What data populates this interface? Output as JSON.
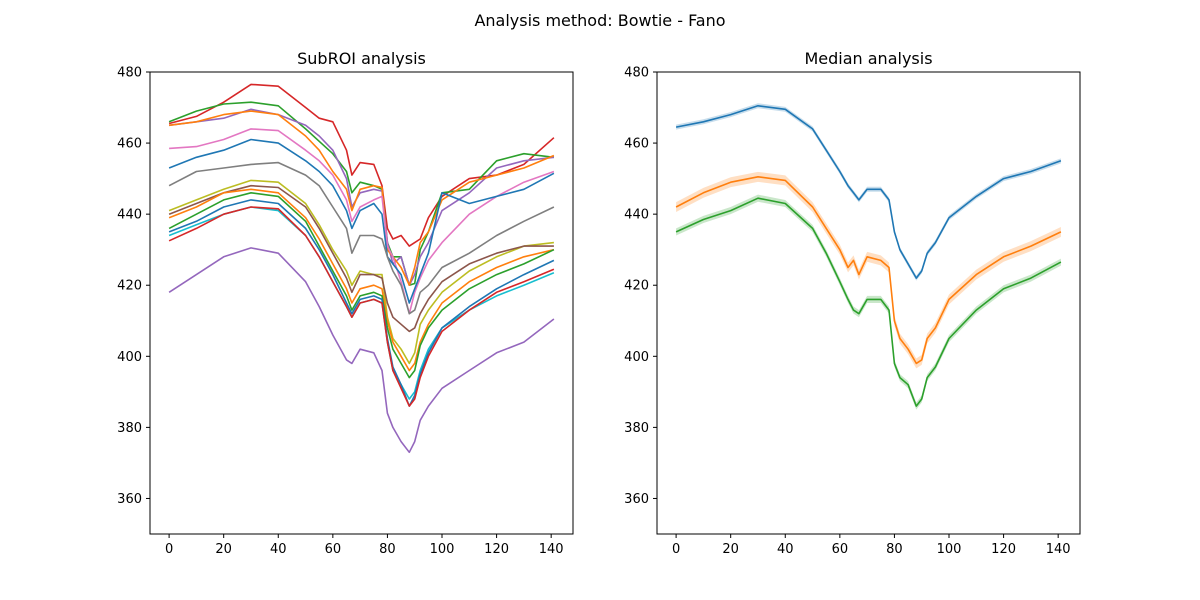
{
  "figure": {
    "suptitle": "Analysis method: Bowtie - Fano"
  },
  "chart_data": [
    {
      "type": "line",
      "title": "SubROI analysis",
      "xlabel": "",
      "ylabel": "",
      "xlim": [
        -7,
        148
      ],
      "ylim": [
        350,
        480
      ],
      "xticks": [
        0,
        20,
        40,
        60,
        80,
        100,
        120,
        140
      ],
      "yticks": [
        360,
        380,
        400,
        420,
        440,
        460,
        480
      ],
      "grid": false,
      "legend": "none",
      "x": [
        0,
        10,
        20,
        30,
        40,
        50,
        55,
        60,
        65,
        67,
        70,
        75,
        78,
        80,
        82,
        85,
        88,
        90,
        92,
        95,
        100,
        110,
        120,
        130,
        141
      ],
      "series": [
        {
          "color": "#d62728",
          "values": [
            465.5,
            467.5,
            471.5,
            476.5,
            476,
            470,
            467,
            466,
            458,
            451,
            454.5,
            454,
            448,
            436,
            433,
            434,
            431,
            432,
            433,
            439,
            445,
            450,
            451,
            454,
            461.5
          ]
        },
        {
          "color": "#2ca02c",
          "values": [
            466,
            469,
            471,
            471.5,
            470.5,
            464,
            460.5,
            457,
            452,
            446,
            449,
            448,
            447,
            432,
            428,
            428,
            420,
            420.5,
            430,
            435,
            446,
            447,
            455,
            457,
            456
          ]
        },
        {
          "color": "#9467bd",
          "values": [
            465,
            466,
            467,
            469.5,
            468,
            465,
            462,
            458,
            450,
            442,
            446,
            447,
            446.5,
            432,
            426,
            428,
            420,
            423,
            428,
            432,
            441,
            446,
            453,
            455,
            456
          ]
        },
        {
          "color": "#ff7f0e",
          "values": [
            465,
            466,
            468,
            469,
            468,
            462,
            458,
            452,
            447,
            441,
            447,
            448,
            447.5,
            430,
            428,
            425,
            420,
            425,
            432,
            435,
            444,
            449,
            451,
            453,
            456.5
          ]
        },
        {
          "color": "#e377c2",
          "values": [
            458.5,
            459,
            461,
            464,
            463.5,
            458,
            455,
            451,
            444,
            438,
            442,
            444,
            445,
            431,
            428,
            421,
            412,
            418,
            422,
            427,
            432,
            440,
            445,
            449,
            452
          ]
        },
        {
          "color": "#1f77b4",
          "values": [
            453,
            456,
            458,
            461,
            460,
            455,
            452,
            448,
            441,
            436,
            441,
            443,
            440,
            428,
            426,
            423,
            415,
            419,
            423,
            429,
            446,
            443,
            445,
            447,
            451.5
          ]
        },
        {
          "color": "#7f7f7f",
          "values": [
            448,
            452,
            453,
            454,
            454.5,
            451,
            448,
            442,
            436,
            429,
            434,
            434,
            433,
            428,
            424,
            420,
            412,
            413,
            418,
            420,
            425,
            429,
            434,
            438,
            442
          ]
        },
        {
          "color": "#bcbd22",
          "values": [
            441,
            444,
            447,
            449.5,
            449,
            443,
            437,
            430,
            424,
            420,
            424,
            423,
            423,
            411,
            405,
            402,
            398,
            401,
            409,
            413,
            418,
            424,
            428,
            431,
            432
          ]
        },
        {
          "color": "#8c564b",
          "values": [
            440,
            443,
            446,
            448,
            447.5,
            442,
            436,
            429,
            422,
            418,
            423,
            423,
            422,
            415,
            411,
            409,
            407,
            408,
            412,
            416,
            421,
            426,
            429,
            431,
            431
          ]
        },
        {
          "color": "#ff7f0e",
          "values": [
            439,
            442,
            446,
            447,
            446,
            439,
            433,
            426,
            419,
            415,
            419,
            420,
            419,
            410,
            404,
            400,
            396,
            398,
            404,
            409,
            415,
            421,
            425,
            428,
            430
          ]
        },
        {
          "color": "#2ca02c",
          "values": [
            436,
            440,
            444,
            446,
            445,
            438,
            431,
            424,
            417,
            413,
            417,
            418,
            417,
            408,
            402,
            398,
            394,
            396,
            403,
            408,
            413,
            419,
            423,
            426,
            430
          ]
        },
        {
          "color": "#17becf",
          "values": [
            434,
            437,
            440,
            442,
            441,
            434,
            428,
            421,
            414,
            411,
            415,
            416,
            415,
            404,
            396,
            392,
            388,
            390,
            396,
            402,
            408,
            413,
            417,
            420,
            423.5
          ]
        },
        {
          "color": "#1f77b4",
          "values": [
            435,
            438,
            442,
            444,
            443,
            436,
            430,
            423,
            415,
            412,
            416,
            417,
            416,
            405,
            397,
            392,
            386,
            389,
            395,
            401,
            408,
            414,
            419,
            423,
            427
          ]
        },
        {
          "color": "#d62728",
          "values": [
            432.5,
            436,
            440,
            442,
            441.5,
            434,
            428,
            421,
            414,
            411,
            415,
            416,
            415,
            404,
            396,
            391,
            386,
            388,
            394,
            400,
            407,
            413,
            418,
            421,
            424.5
          ]
        },
        {
          "color": "#9467bd",
          "values": [
            418,
            423,
            428,
            430.5,
            429,
            421,
            414,
            406,
            399,
            398,
            402,
            401,
            396,
            384,
            380,
            376,
            373,
            376,
            382,
            386,
            391,
            396,
            401,
            404,
            410.5
          ]
        }
      ]
    },
    {
      "type": "line",
      "title": "Median analysis",
      "xlabel": "",
      "ylabel": "",
      "xlim": [
        -7,
        148
      ],
      "ylim": [
        350,
        480
      ],
      "xticks": [
        0,
        20,
        40,
        60,
        80,
        100,
        120,
        140
      ],
      "yticks": [
        360,
        380,
        400,
        420,
        440,
        460,
        480
      ],
      "grid": false,
      "legend": "none",
      "x": [
        0,
        10,
        20,
        30,
        40,
        50,
        55,
        60,
        63,
        65,
        67,
        70,
        75,
        78,
        80,
        82,
        85,
        88,
        90,
        92,
        95,
        100,
        110,
        120,
        130,
        141
      ],
      "series": [
        {
          "color": "#1f77b4",
          "values": [
            464.5,
            466,
            468,
            470.5,
            469.5,
            464,
            458,
            452,
            448,
            446,
            444,
            447,
            447,
            444,
            435,
            430,
            426,
            422,
            424,
            429,
            432,
            439,
            445,
            450,
            452,
            455
          ]
        },
        {
          "color": "#ff7f0e",
          "values": [
            442,
            446,
            449,
            450.5,
            449.5,
            442,
            436,
            430,
            425,
            427,
            423,
            428,
            427,
            425,
            410,
            405,
            402,
            398,
            399,
            405,
            408,
            416,
            423,
            428,
            431,
            435
          ]
        },
        {
          "color": "#2ca02c",
          "values": [
            435,
            438.5,
            441,
            444.5,
            443,
            436,
            429,
            421,
            416,
            413,
            412,
            416,
            416,
            413,
            398,
            394,
            392,
            386,
            388,
            394,
            397,
            405,
            413,
            419,
            422,
            426.5
          ]
        }
      ],
      "band_halfwidth": [
        0.7,
        1.4,
        1.0
      ]
    }
  ]
}
